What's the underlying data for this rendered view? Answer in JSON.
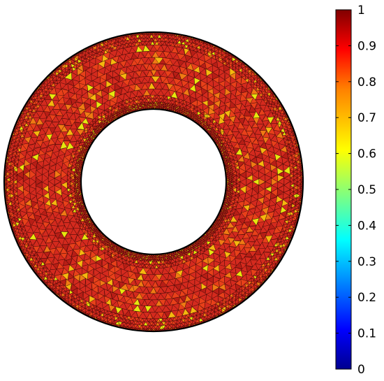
{
  "figure": {
    "kind": "finite element mesh quality plot of an annular (ring) domain",
    "colormap": "jet (rainbow)",
    "dominant_quality_color": "#d42a1e",
    "mesh_edge_color": "#000000"
  },
  "colorbar": {
    "min": 0,
    "max": 1,
    "ticks": [
      "0",
      "0.1",
      "0.2",
      "0.3",
      "0.4",
      "0.5",
      "0.6",
      "0.7",
      "0.8",
      "0.9",
      "1"
    ],
    "tick_values": [
      0,
      0.1,
      0.2,
      0.3,
      0.4,
      0.5,
      0.6,
      0.7,
      0.8,
      0.9,
      1
    ],
    "colormap_stops": [
      "#00008f",
      "#0000ff",
      "#00ffff",
      "#ffff00",
      "#ff8000",
      "#ff0000",
      "#800000"
    ]
  },
  "mesh": {
    "shape": "annulus",
    "quality_distribution_note": "most elements in 0.8–1.0 range, scattered elements near 0.6–0.7"
  }
}
